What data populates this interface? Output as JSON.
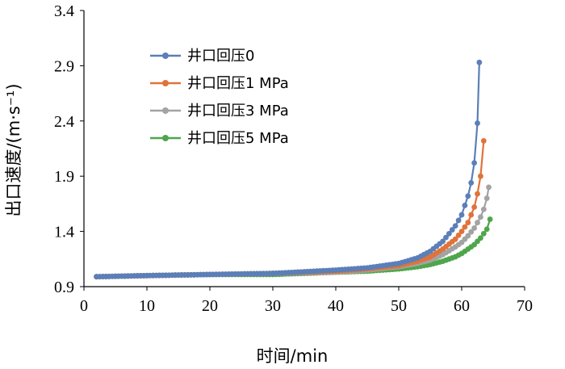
{
  "chart_data": {
    "type": "line",
    "title": "",
    "xlabel": "时间/min",
    "ylabel": "出口速度/(m·s⁻¹)",
    "xlim": [
      0,
      70
    ],
    "ylim": [
      0.9,
      3.4
    ],
    "xticks": [
      0,
      10,
      20,
      30,
      40,
      50,
      60,
      70
    ],
    "yticks": [
      0.9,
      1.4,
      1.9,
      2.4,
      2.9,
      3.4
    ],
    "ytick_labels": [
      "0.9",
      "1.4",
      "1.9",
      "2.4",
      "2.9",
      "3.4"
    ],
    "grid": false,
    "legend_position": "top-left",
    "series": [
      {
        "name": "井口回压0",
        "color": "#5b7fb8",
        "marker": "circle",
        "x": [
          2,
          10,
          20,
          30,
          40,
          45,
          50,
          53,
          55,
          57,
          59,
          60,
          61,
          61.5,
          62,
          62.3,
          62.6,
          62.8
        ],
        "y": [
          0.99,
          1.0,
          1.01,
          1.02,
          1.05,
          1.07,
          1.11,
          1.16,
          1.22,
          1.31,
          1.45,
          1.55,
          1.72,
          1.84,
          2.02,
          2.2,
          2.47,
          2.93
        ]
      },
      {
        "name": "井口回压1  MPa",
        "color": "#e0733a",
        "marker": "circle",
        "x": [
          2,
          10,
          20,
          30,
          40,
          45,
          50,
          53,
          55,
          57,
          59,
          60,
          61,
          62,
          62.5,
          63,
          63.3,
          63.5
        ],
        "y": [
          0.99,
          1.0,
          1.01,
          1.02,
          1.04,
          1.06,
          1.09,
          1.13,
          1.17,
          1.24,
          1.33,
          1.4,
          1.48,
          1.62,
          1.74,
          1.9,
          2.05,
          2.22
        ]
      },
      {
        "name": "井口回压3  MPa",
        "color": "#a3a3a3",
        "marker": "circle",
        "x": [
          2,
          10,
          20,
          30,
          40,
          45,
          50,
          53,
          55,
          57,
          59,
          60,
          61,
          62,
          63,
          63.5,
          64,
          64.3
        ],
        "y": [
          0.99,
          1.0,
          1.01,
          1.02,
          1.03,
          1.05,
          1.08,
          1.11,
          1.14,
          1.19,
          1.26,
          1.3,
          1.36,
          1.43,
          1.53,
          1.6,
          1.7,
          1.8
        ]
      },
      {
        "name": "井口回压5  MPa",
        "color": "#4ea64a",
        "marker": "circle",
        "x": [
          2,
          10,
          20,
          30,
          40,
          45,
          50,
          53,
          55,
          57,
          59,
          60,
          61,
          62,
          63,
          64,
          64.5
        ],
        "y": [
          0.99,
          1.0,
          1.01,
          1.01,
          1.03,
          1.04,
          1.06,
          1.08,
          1.1,
          1.13,
          1.17,
          1.2,
          1.24,
          1.28,
          1.34,
          1.42,
          1.51
        ]
      }
    ]
  }
}
